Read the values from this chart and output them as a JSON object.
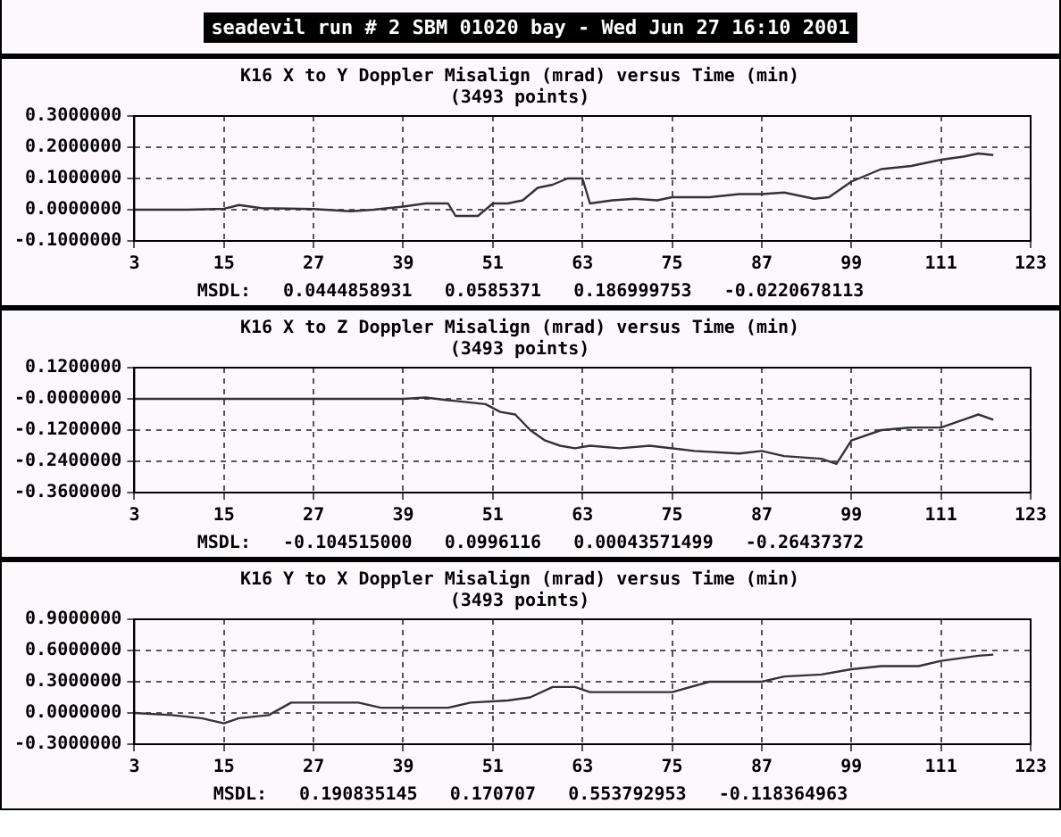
{
  "chart_data": [
    {
      "type": "other",
      "title": "seadevil run # 2 SBM 01020 bay - Wed Jun 27 16:10 2001"
    },
    {
      "type": "line",
      "title": "K16 X to Y Doppler Misalign (mrad) versus Time (min)",
      "subtitle": "(3493 points)",
      "annotations": [
        "MSDL:   0.0444858931   0.0585371   0.186999753   -0.0220678113"
      ],
      "xlim": [
        3,
        123
      ],
      "xticks": [
        3,
        15,
        27,
        39,
        51,
        63,
        75,
        87,
        99,
        111,
        123
      ],
      "ylim": [
        -0.1,
        0.3
      ],
      "yticks": [
        {
          "value": -0.1,
          "label": "-0.1000000"
        },
        {
          "value": 0,
          "label": "0.0000000"
        },
        {
          "value": 0.1,
          "label": "0.1000000"
        },
        {
          "value": 0.2,
          "label": "0.2000000"
        },
        {
          "value": 0.3,
          "label": "0.3000000"
        }
      ],
      "grid": true,
      "legend": false,
      "marker": "none",
      "line_style": "solid",
      "series": [
        {
          "color": "#333333",
          "x": [
            3,
            10,
            15,
            17,
            20,
            27,
            32,
            35,
            39,
            42,
            45,
            46,
            49,
            51,
            53,
            55,
            57,
            59,
            61,
            63,
            64,
            67,
            70,
            73,
            75,
            80,
            84,
            87,
            90,
            94,
            96,
            99,
            103,
            107,
            111,
            114,
            116,
            118
          ],
          "values": [
            0,
            0,
            0.003,
            0.015,
            0.005,
            0.002,
            -0.005,
            0,
            0.01,
            0.02,
            0.02,
            -0.02,
            -0.02,
            0.02,
            0.02,
            0.03,
            0.07,
            0.08,
            0.1,
            0.1,
            0.02,
            0.03,
            0.035,
            0.03,
            0.04,
            0.04,
            0.05,
            0.05,
            0.055,
            0.035,
            0.04,
            0.09,
            0.13,
            0.14,
            0.16,
            0.17,
            0.18,
            0.175
          ]
        }
      ]
    },
    {
      "type": "line",
      "title": "K16 X to Z Doppler Misalign (mrad) versus Time (min)",
      "subtitle": "(3493 points)",
      "annotations": [
        "MSDL:   -0.104515000   0.0996116   0.00043571499   -0.26437372"
      ],
      "xlim": [
        3,
        123
      ],
      "xticks": [
        3,
        15,
        27,
        39,
        51,
        63,
        75,
        87,
        99,
        111,
        123
      ],
      "ylim": [
        -0.36,
        0.12
      ],
      "yticks": [
        {
          "value": -0.36,
          "label": "-0.3600000"
        },
        {
          "value": -0.24,
          "label": "-0.2400000"
        },
        {
          "value": -0.12,
          "label": "-0.1200000"
        },
        {
          "value": 0,
          "label": "-0.0000000"
        },
        {
          "value": 0.12,
          "label": "0.1200000"
        }
      ],
      "grid": true,
      "legend": false,
      "marker": "none",
      "line_style": "solid",
      "series": [
        {
          "color": "#333333",
          "x": [
            3,
            39,
            42,
            45,
            50,
            52,
            54,
            56,
            58,
            60,
            62,
            64,
            68,
            72,
            78,
            84,
            87,
            90,
            95,
            97,
            99,
            103,
            107,
            111,
            114,
            116,
            118
          ],
          "values": [
            0,
            0,
            0.005,
            -0.005,
            -0.02,
            -0.05,
            -0.06,
            -0.12,
            -0.16,
            -0.18,
            -0.19,
            -0.18,
            -0.19,
            -0.18,
            -0.2,
            -0.21,
            -0.2,
            -0.22,
            -0.23,
            -0.25,
            -0.16,
            -0.12,
            -0.11,
            -0.11,
            -0.08,
            -0.06,
            -0.08
          ]
        }
      ]
    },
    {
      "type": "line",
      "title": "K16 Y to X Doppler Misalign (mrad) versus Time (min)",
      "subtitle": "(3493 points)",
      "annotations": [
        "MSDL:   0.190835145   0.170707   0.553792953   -0.118364963"
      ],
      "xlim": [
        3,
        123
      ],
      "xticks": [
        3,
        15,
        27,
        39,
        51,
        63,
        75,
        87,
        99,
        111,
        123
      ],
      "ylim": [
        -0.3,
        0.9
      ],
      "yticks": [
        {
          "value": -0.3,
          "label": "-0.3000000"
        },
        {
          "value": 0,
          "label": "0.0000000"
        },
        {
          "value": 0.3,
          "label": "0.3000000"
        },
        {
          "value": 0.6,
          "label": "0.6000000"
        },
        {
          "value": 0.9,
          "label": "0.9000000"
        }
      ],
      "grid": true,
      "legend": false,
      "marker": "none",
      "line_style": "solid",
      "series": [
        {
          "color": "#333333",
          "x": [
            3,
            8,
            12,
            15,
            17,
            21,
            24,
            30,
            33,
            36,
            42,
            45,
            48,
            53,
            56,
            59,
            62,
            64,
            70,
            75,
            80,
            87,
            90,
            95,
            99,
            103,
            108,
            111,
            116,
            118
          ],
          "values": [
            0,
            -0.02,
            -0.05,
            -0.1,
            -0.05,
            -0.02,
            0.1,
            0.1,
            0.1,
            0.05,
            0.05,
            0.05,
            0.1,
            0.12,
            0.15,
            0.25,
            0.25,
            0.2,
            0.2,
            0.2,
            0.3,
            0.3,
            0.35,
            0.37,
            0.42,
            0.45,
            0.45,
            0.5,
            0.55,
            0.56
          ]
        }
      ]
    }
  ]
}
